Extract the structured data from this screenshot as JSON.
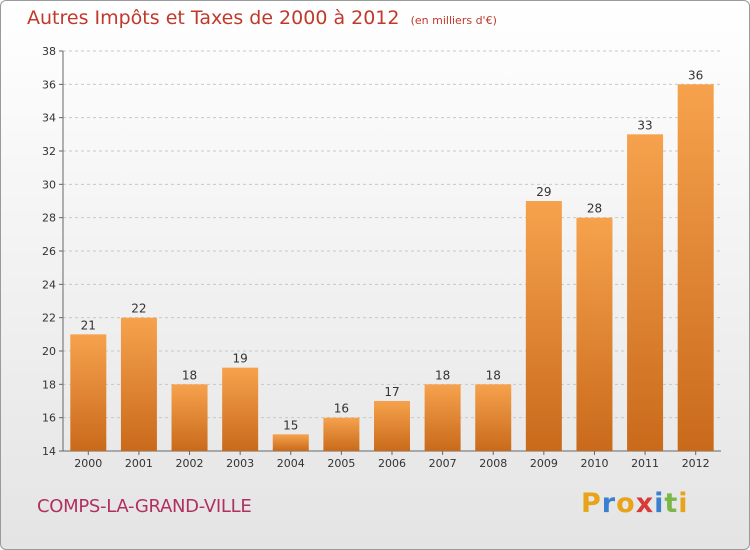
{
  "title": "Autres Impôts et Taxes de 2000 à 2012",
  "unit": "(en milliers d'€)",
  "commune": "COMPS-LA-GRAND-VILLE",
  "brand": {
    "letters": [
      {
        "char": "P",
        "color": "#e8a319"
      },
      {
        "char": "r",
        "color": "#3a7fd0"
      },
      {
        "char": "o",
        "color": "#e8a319"
      },
      {
        "char": "x",
        "color": "#d83a3a"
      },
      {
        "char": "i",
        "color": "#3a7fd0"
      },
      {
        "char": "t",
        "color": "#7ab648"
      },
      {
        "char": "i",
        "color": "#e8a319"
      }
    ]
  },
  "colors": {
    "bar_light": "#f6a24d",
    "bar_dark": "#c96a1b"
  },
  "chart_data": {
    "type": "bar",
    "categories": [
      "2000",
      "2001",
      "2002",
      "2003",
      "2004",
      "2005",
      "2006",
      "2007",
      "2008",
      "2009",
      "2010",
      "2011",
      "2012"
    ],
    "values": [
      21,
      22,
      18,
      19,
      15,
      16,
      17,
      18,
      18,
      29,
      28,
      33,
      36
    ],
    "ylim": [
      14,
      38
    ],
    "yticks": [
      14,
      16,
      18,
      20,
      22,
      24,
      26,
      28,
      30,
      32,
      34,
      36,
      38
    ],
    "grid": true
  }
}
